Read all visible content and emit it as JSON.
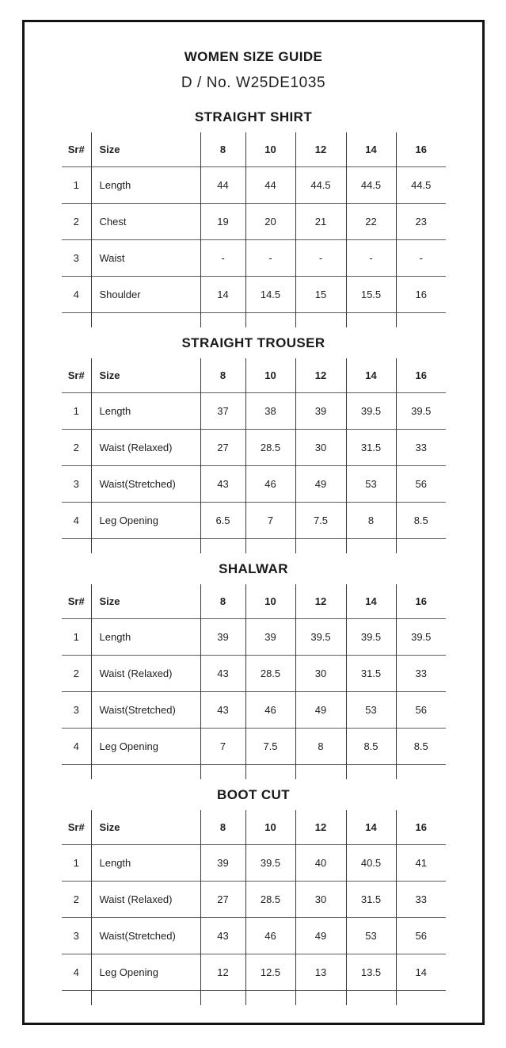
{
  "header": {
    "title": "WOMEN SIZE GUIDE",
    "design_no": "D / No. W25DE1035"
  },
  "tables": [
    {
      "title": "STRAIGHT SHIRT",
      "columns": [
        "Sr#",
        "Size",
        "8",
        "10",
        "12",
        "14",
        "16"
      ],
      "rows": [
        {
          "sr": "1",
          "label": "Length",
          "values": [
            "44",
            "44",
            "44.5",
            "44.5",
            "44.5"
          ]
        },
        {
          "sr": "2",
          "label": "Chest",
          "values": [
            "19",
            "20",
            "21",
            "22",
            "23"
          ]
        },
        {
          "sr": "3",
          "label": "Waist",
          "values": [
            "-",
            "-",
            "-",
            "-",
            "-"
          ]
        },
        {
          "sr": "4",
          "label": "Shoulder",
          "values": [
            "14",
            "14.5",
            "15",
            "15.5",
            "16"
          ]
        }
      ]
    },
    {
      "title": "STRAIGHT TROUSER",
      "columns": [
        "Sr#",
        "Size",
        "8",
        "10",
        "12",
        "14",
        "16"
      ],
      "rows": [
        {
          "sr": "1",
          "label": "Length",
          "values": [
            "37",
            "38",
            "39",
            "39.5",
            "39.5"
          ]
        },
        {
          "sr": "2",
          "label": "Waist (Relaxed)",
          "values": [
            "27",
            "28.5",
            "30",
            "31.5",
            "33"
          ]
        },
        {
          "sr": "3",
          "label": "Waist(Stretched)",
          "values": [
            "43",
            "46",
            "49",
            "53",
            "56"
          ]
        },
        {
          "sr": "4",
          "label": "Leg Opening",
          "values": [
            "6.5",
            "7",
            "7.5",
            "8",
            "8.5"
          ]
        }
      ]
    },
    {
      "title": "SHALWAR",
      "columns": [
        "Sr#",
        "Size",
        "8",
        "10",
        "12",
        "14",
        "16"
      ],
      "rows": [
        {
          "sr": "1",
          "label": "Length",
          "values": [
            "39",
            "39",
            "39.5",
            "39.5",
            "39.5"
          ]
        },
        {
          "sr": "2",
          "label": "Waist (Relaxed)",
          "values": [
            "43",
            "28.5",
            "30",
            "31.5",
            "33"
          ]
        },
        {
          "sr": "3",
          "label": "Waist(Stretched)",
          "values": [
            "43",
            "46",
            "49",
            "53",
            "56"
          ]
        },
        {
          "sr": "4",
          "label": "Leg Opening",
          "values": [
            "7",
            "7.5",
            "8",
            "8.5",
            "8.5"
          ]
        }
      ]
    },
    {
      "title": "BOOT CUT",
      "columns": [
        "Sr#",
        "Size",
        "8",
        "10",
        "12",
        "14",
        "16"
      ],
      "rows": [
        {
          "sr": "1",
          "label": "Length",
          "values": [
            "39",
            "39.5",
            "40",
            "40.5",
            "41"
          ]
        },
        {
          "sr": "2",
          "label": "Waist (Relaxed)",
          "values": [
            "27",
            "28.5",
            "30",
            "31.5",
            "33"
          ]
        },
        {
          "sr": "3",
          "label": "Waist(Stretched)",
          "values": [
            "43",
            "46",
            "49",
            "53",
            "56"
          ]
        },
        {
          "sr": "4",
          "label": "Leg Opening",
          "values": [
            "12",
            "12.5",
            "13",
            "13.5",
            "14"
          ]
        }
      ]
    }
  ],
  "colors": {
    "background": "#ffffff",
    "frame_border": "#141414",
    "text": "#1c1c1c",
    "horizontal_rule": "#5d5d5d",
    "vertical_rule": "#3c3c3c"
  }
}
